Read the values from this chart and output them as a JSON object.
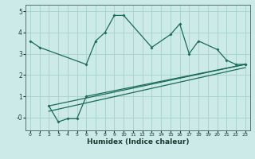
{
  "title": "",
  "xlabel": "Humidex (Indice chaleur)",
  "ylabel": "",
  "bg_color": "#cceae8",
  "grid_color": "#aad4d0",
  "line_color": "#1a6b5a",
  "xlim": [
    -0.5,
    23.5
  ],
  "ylim": [
    -0.6,
    5.3
  ],
  "xticks": [
    0,
    1,
    2,
    3,
    4,
    5,
    6,
    7,
    8,
    9,
    10,
    11,
    12,
    13,
    14,
    15,
    16,
    17,
    18,
    19,
    20,
    21,
    22,
    23
  ],
  "yticks": [
    0,
    1,
    2,
    3,
    4,
    5
  ],
  "ytick_labels": [
    "-0",
    "1",
    "2",
    "3",
    "4",
    "5"
  ],
  "line1_x": [
    0,
    1,
    6,
    7,
    8,
    9,
    10,
    13,
    15,
    16,
    17,
    18,
    20,
    21,
    22,
    23
  ],
  "line1_y": [
    3.6,
    3.3,
    2.5,
    3.6,
    4.0,
    4.8,
    4.8,
    3.3,
    3.9,
    4.4,
    3.0,
    3.6,
    3.2,
    2.7,
    2.5,
    2.5
  ],
  "line2_x": [
    2,
    3,
    4,
    5,
    6,
    23
  ],
  "line2_y": [
    0.55,
    -0.2,
    -0.05,
    -0.05,
    1.0,
    2.5
  ],
  "line3_x": [
    2,
    23
  ],
  "line3_y": [
    0.55,
    2.5
  ],
  "line4_x": [
    2,
    23
  ],
  "line4_y": [
    0.3,
    2.35
  ]
}
